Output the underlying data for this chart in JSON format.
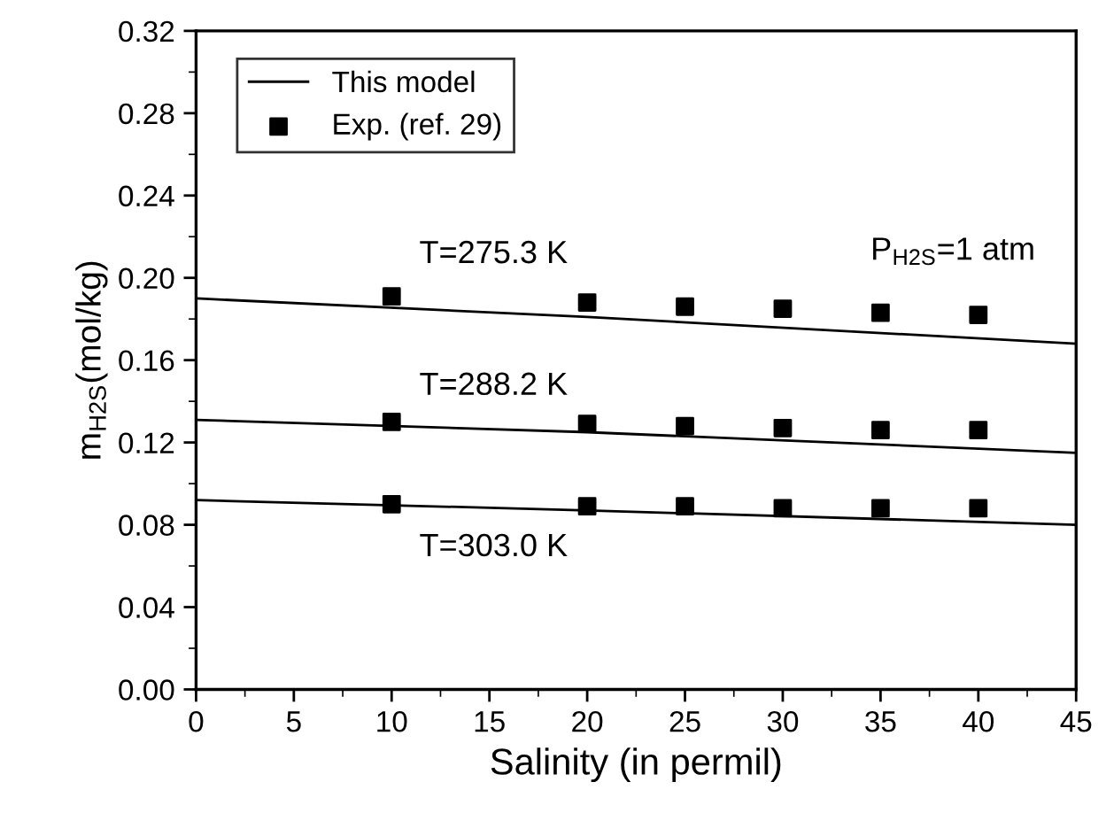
{
  "chart_data": {
    "type": "scatter",
    "xlabel": "Salinity (in permil)",
    "ylabel": "m$_{H2S}$(mol/kg)",
    "xlim": [
      0,
      45
    ],
    "xticks": [
      0,
      5,
      10,
      15,
      20,
      25,
      30,
      35,
      40,
      45
    ],
    "ylim": [
      0,
      0.32
    ],
    "yticks": [
      {
        "value": 0,
        "label": "0.00"
      },
      {
        "value": 0.04,
        "label": "0.04"
      },
      {
        "value": 0.08,
        "label": "0.08"
      },
      {
        "value": 0.12,
        "label": "0.12"
      },
      {
        "value": 0.16,
        "label": "0.16"
      },
      {
        "value": 0.2,
        "label": "0.20"
      },
      {
        "value": 0.24,
        "label": "0.24"
      },
      {
        "value": 0.28,
        "label": "0.28"
      },
      {
        "value": 0.32,
        "label": "0.32"
      }
    ],
    "grid": false,
    "legend": "top left",
    "series": [
      {
        "type": "line",
        "name": "This model",
        "color": "#000000",
        "line_style": "solid",
        "marker": "none",
        "x": [
          0,
          20,
          45
        ],
        "values": [
          0.19,
          0.181,
          0.168
        ]
      },
      {
        "type": "line",
        "color": "#000000",
        "line_style": "solid",
        "marker": "none",
        "x": [
          0,
          20,
          45
        ],
        "values": [
          0.131,
          0.125,
          0.115
        ]
      },
      {
        "type": "line",
        "color": "#000000",
        "line_style": "solid",
        "marker": "none",
        "x": [
          0,
          20,
          45
        ],
        "values": [
          0.092,
          0.087,
          0.08
        ]
      },
      {
        "name": "Exp. (ref. 29)",
        "color": "#000000",
        "marker": "square",
        "x": [
          10,
          20,
          25,
          30,
          35,
          40
        ],
        "values": [
          0.191,
          0.188,
          0.186,
          0.185,
          0.183,
          0.182
        ]
      },
      {
        "color": "#000000",
        "marker": "square",
        "x": [
          10,
          20,
          25,
          30,
          35,
          40
        ],
        "values": [
          0.13,
          0.129,
          0.128,
          0.127,
          0.126,
          0.126
        ]
      },
      {
        "color": "#000000",
        "marker": "square",
        "x": [
          10,
          20,
          25,
          30,
          35,
          40
        ],
        "values": [
          0.09,
          0.089,
          0.089,
          0.088,
          0.088,
          0.088
        ]
      }
    ],
    "annotations": [
      "T=275.3 K",
      "T=288.2 K",
      "T=303.0 K",
      "P$_{H2S}$=1 atm"
    ]
  }
}
